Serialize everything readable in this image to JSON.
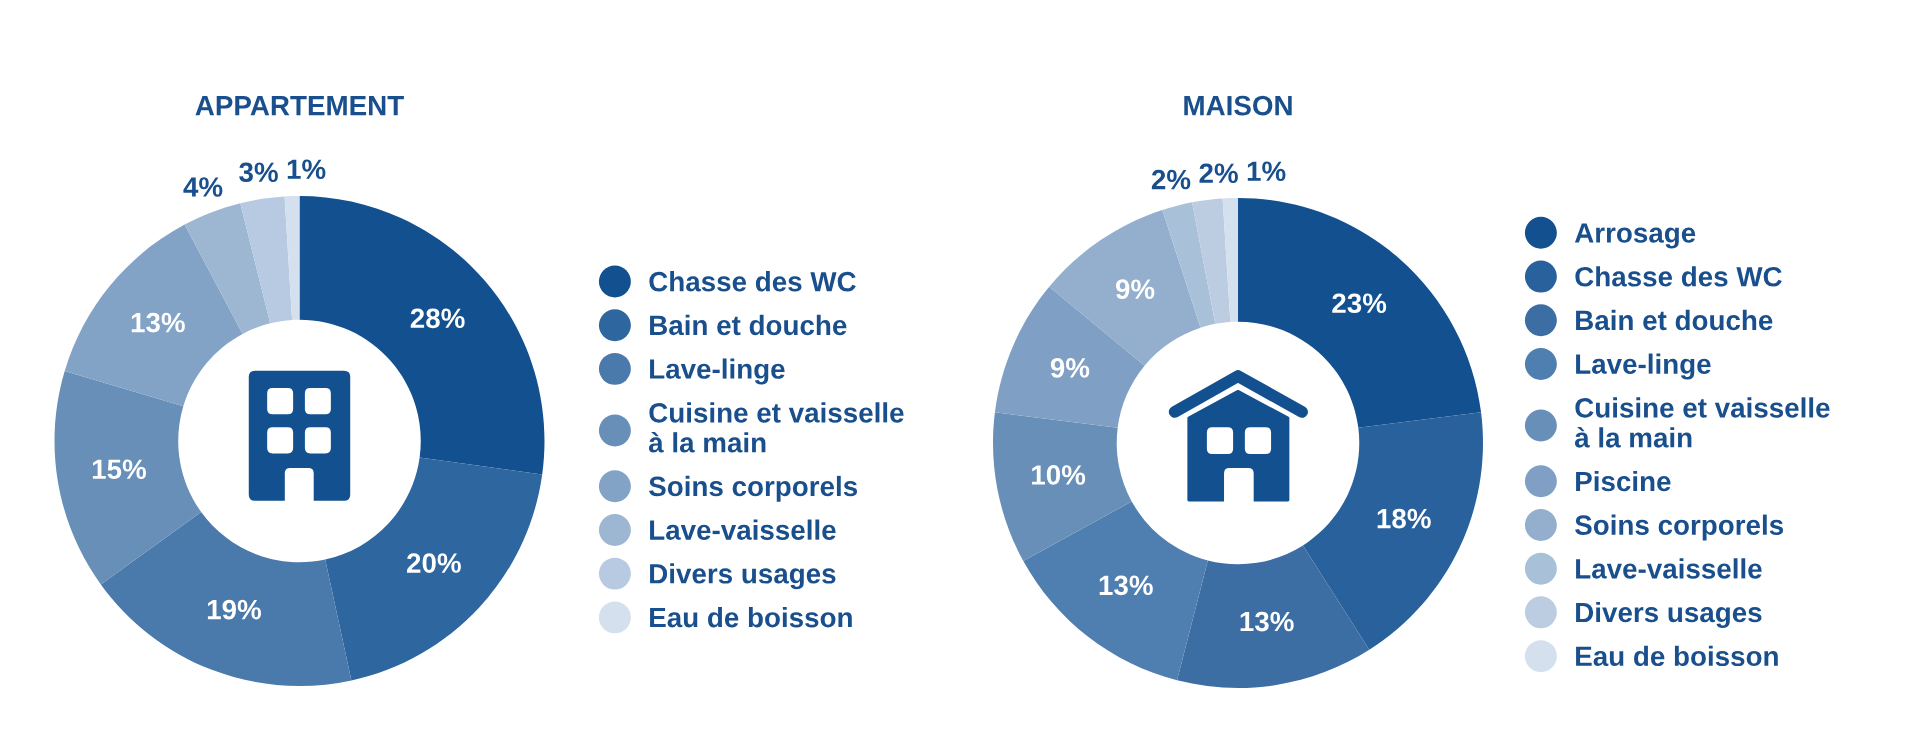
{
  "chart_data": [
    {
      "type": "donut",
      "title": "APPARTEMENT",
      "categories": [
        "Chasse des WC",
        "Bain et douche",
        "Lave-linge",
        "Cuisine et vaisselle à la main",
        "Soins corporels",
        "Lave-vaisselle",
        "Divers usages",
        "Eau de boisson"
      ],
      "values": [
        28,
        20,
        19,
        15,
        13,
        4,
        3,
        1
      ],
      "value_labels": [
        "28%",
        "20%",
        "19%",
        "15%",
        "13%",
        "4%",
        "3%",
        "1%"
      ],
      "colors": [
        "#13508f",
        "#2e66a0",
        "#4a79ab",
        "#678fb8",
        "#82a3c6",
        "#9db7d3",
        "#b7cae1",
        "#d4e0ed"
      ],
      "legend": "right"
    },
    {
      "type": "donut",
      "title": "MAISON",
      "categories": [
        "Arrosage",
        "Chasse des WC",
        "Bain et douche",
        "Lave-linge",
        "Cuisine et vaisselle à la main",
        "Piscine",
        "Soins corporels",
        "Lave-vaisselle",
        "Divers usages",
        "Eau de boisson"
      ],
      "values": [
        23,
        18,
        13,
        13,
        10,
        9,
        9,
        2,
        2,
        1
      ],
      "value_labels": [
        "23%",
        "18%",
        "13%",
        "13%",
        "10%",
        "9%",
        "9%",
        "2%",
        "2%",
        "1%"
      ],
      "colors": [
        "#13508f",
        "#28619c",
        "#3c6ea4",
        "#4f7eb0",
        "#678fb8",
        "#7fa0c4",
        "#93afcd",
        "#a9c0d9",
        "#bccde2",
        "#d4e0ed"
      ],
      "legend": "right"
    }
  ]
}
